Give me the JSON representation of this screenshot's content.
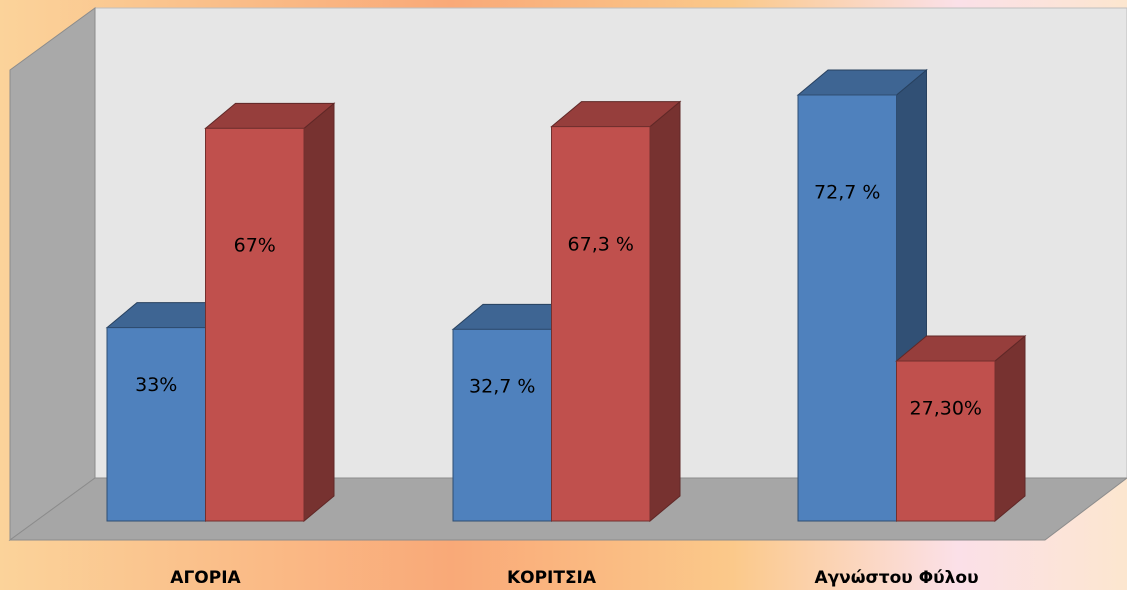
{
  "chart_data": {
    "type": "bar3d",
    "categories": [
      "ΑΓΟΡΙΑ",
      "ΚΟΡΙΤΣΙΑ",
      "Αγνώστου Φύλου"
    ],
    "series": [
      {
        "color": "#4f81bd",
        "values": [
          33,
          32.7,
          72.7
        ],
        "value_labels": [
          "33%",
          "32,7 %",
          "72,7 %"
        ]
      },
      {
        "color": "#c0504d",
        "values": [
          67,
          67.3,
          27.3
        ],
        "value_labels": [
          "67%",
          "67,3 %",
          "27,30%"
        ]
      }
    ]
  }
}
